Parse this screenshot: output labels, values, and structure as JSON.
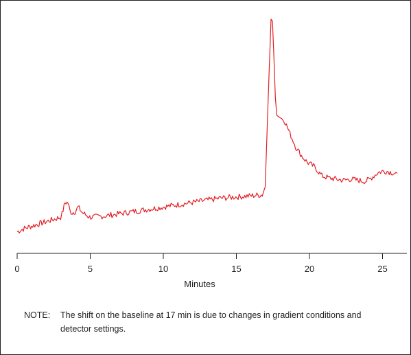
{
  "chart_data": {
    "type": "line",
    "title": "",
    "xlabel": "Minutes",
    "ylabel": "",
    "xlim": [
      0,
      26.3
    ],
    "ylim": [
      0,
      100
    ],
    "x_ticks": [
      0,
      5,
      10,
      15,
      20,
      25
    ],
    "y_ticks": [],
    "grid": false,
    "series": [
      {
        "color": "#e31e24",
        "x": [
          0,
          0.5,
          1,
          1.5,
          2,
          2.5,
          3,
          3.1,
          3.3,
          3.5,
          3.65,
          3.8,
          4.0,
          4.2,
          4.5,
          5,
          6,
          7,
          8,
          9,
          10,
          11,
          12,
          13,
          14,
          15,
          16,
          16.9,
          17.1,
          17.3,
          17.5,
          17.6,
          17.7,
          17.8,
          17.9,
          18.1,
          18.4,
          18.8,
          19.2,
          19.6,
          20.0,
          20.5,
          21.0,
          21.5,
          22,
          22.5,
          23,
          23.5,
          24,
          24.3,
          24.6,
          24.9,
          25.2,
          25.5,
          25.8,
          26.2
        ],
        "y": [
          2,
          3.5,
          4.5,
          5.5,
          6.5,
          7.5,
          8.5,
          10,
          15,
          15,
          11,
          10.5,
          11,
          13,
          10.5,
          8.5,
          9,
          10,
          11,
          12,
          13,
          14,
          15,
          16,
          17,
          17.5,
          18,
          18.5,
          22,
          60,
          97,
          96,
          80,
          62,
          54,
          53,
          52,
          46,
          40,
          36,
          33,
          31,
          27,
          26,
          25.5,
          25,
          25.5,
          25,
          24.5,
          25.5,
          27,
          28.5,
          29,
          29,
          28.5,
          28
        ]
      }
    ],
    "note_label": "NOTE:",
    "note_text": "The shift on the baseline at 17 min is due to changes in gradient conditions and detector settings."
  }
}
